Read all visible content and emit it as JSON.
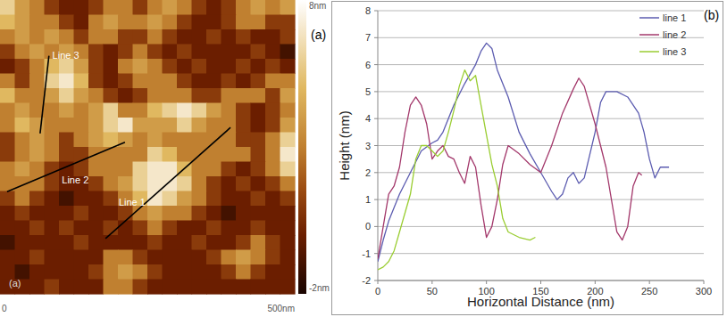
{
  "chart_data": [
    {
      "type": "heatmap",
      "panel_labels": [
        "(a)",
        "(a)"
      ],
      "xlim": [
        0,
        500
      ],
      "ylim": [
        0,
        500
      ],
      "xticks": [
        0,
        {
          "value": 500,
          "label": "500nm"
        }
      ],
      "tick_labels": "x",
      "colorbar_range": [
        -2,
        8
      ],
      "colorbar_ticks": [
        {
          "value": 8,
          "label": "8nm"
        },
        {
          "value": -2,
          "label": "-2nm"
        }
      ],
      "cells": [
        [
          6,
          4,
          3,
          1,
          0,
          0,
          1,
          3,
          3,
          1,
          3,
          4,
          3,
          1,
          0,
          1,
          3,
          4,
          3,
          4
        ],
        [
          5,
          4,
          3,
          3,
          1,
          0,
          3,
          4,
          3,
          3,
          4,
          3,
          1,
          0,
          0,
          1,
          3,
          3,
          1,
          1
        ],
        [
          3,
          4,
          3,
          4,
          3,
          1,
          3,
          3,
          1,
          1,
          3,
          1,
          0,
          0,
          1,
          0,
          1,
          0,
          0,
          1
        ],
        [
          1,
          3,
          4,
          3,
          4,
          3,
          1,
          0,
          1,
          3,
          1,
          0,
          1,
          0,
          0,
          0,
          0,
          1,
          0,
          -1
        ],
        [
          0,
          1,
          3,
          5,
          6,
          4,
          1,
          0,
          3,
          4,
          3,
          1,
          0,
          1,
          0,
          0,
          1,
          0,
          1,
          0
        ],
        [
          3,
          1,
          3,
          6,
          7,
          5,
          1,
          0,
          1,
          3,
          3,
          3,
          1,
          0,
          0,
          1,
          0,
          1,
          3,
          3
        ],
        [
          5,
          3,
          3,
          4,
          6,
          4,
          3,
          1,
          0,
          1,
          3,
          3,
          3,
          1,
          1,
          3,
          3,
          3,
          1,
          4
        ],
        [
          3,
          4,
          3,
          3,
          4,
          3,
          4,
          6,
          3,
          3,
          5,
          6,
          7,
          6,
          4,
          3,
          1,
          0,
          1,
          3
        ],
        [
          3,
          5,
          4,
          3,
          3,
          3,
          4,
          6,
          7,
          4,
          4,
          4,
          6,
          4,
          3,
          3,
          1,
          0,
          1,
          4
        ],
        [
          1,
          3,
          4,
          3,
          1,
          3,
          4,
          5,
          4,
          3,
          4,
          3,
          3,
          3,
          3,
          3,
          1,
          1,
          3,
          6
        ],
        [
          1,
          3,
          4,
          3,
          1,
          1,
          3,
          3,
          3,
          3,
          6,
          5,
          3,
          3,
          3,
          3,
          3,
          1,
          3,
          7
        ],
        [
          3,
          4,
          3,
          1,
          0,
          1,
          3,
          3,
          3,
          6,
          7,
          7,
          5,
          3,
          3,
          1,
          0,
          1,
          3,
          6
        ],
        [
          3,
          3,
          3,
          1,
          0,
          0,
          1,
          3,
          4,
          6,
          7,
          7,
          6,
          3,
          1,
          0,
          1,
          0,
          1,
          3
        ],
        [
          1,
          3,
          1,
          0,
          -1,
          0,
          0,
          1,
          3,
          5,
          7,
          6,
          4,
          3,
          1,
          0,
          0,
          1,
          0,
          1
        ],
        [
          0,
          1,
          0,
          0,
          0,
          1,
          0,
          0,
          1,
          3,
          4,
          3,
          3,
          1,
          0,
          -1,
          0,
          0,
          0,
          0
        ],
        [
          0,
          0,
          1,
          0,
          1,
          0,
          0,
          1,
          0,
          1,
          3,
          1,
          0,
          0,
          1,
          0,
          0,
          1,
          0,
          0
        ],
        [
          -1,
          0,
          0,
          0,
          0,
          1,
          0,
          0,
          0,
          0,
          1,
          0,
          0,
          1,
          0,
          0,
          1,
          3,
          1,
          0
        ],
        [
          0,
          0,
          1,
          0,
          0,
          0,
          0,
          3,
          3,
          1,
          0,
          0,
          0,
          0,
          1,
          3,
          4,
          3,
          1,
          0
        ],
        [
          0,
          -1,
          0,
          0,
          0,
          0,
          1,
          3,
          4,
          3,
          1,
          0,
          0,
          0,
          0,
          1,
          3,
          1,
          0,
          0
        ],
        [
          0,
          0,
          0,
          1,
          0,
          0,
          0,
          3,
          3,
          1,
          0,
          0,
          0,
          0,
          0,
          0,
          0,
          0,
          0,
          0
        ]
      ],
      "annotations": [
        {
          "text": "Line 1",
          "x": [
            179,
            391
          ],
          "y": [
            406,
            217
          ]
        },
        {
          "text": "Line 2",
          "x": [
            12,
            212
          ],
          "y": [
            326,
            242
          ]
        },
        {
          "text": "Line 3",
          "x": [
            83,
            68
          ],
          "y": [
            95,
            227
          ]
        }
      ]
    },
    {
      "type": "line",
      "panel_label": "(b)",
      "x_label": "Horizontal Distance (nm)",
      "y_label": "Height (nm)",
      "xlim": [
        0,
        300
      ],
      "ylim": [
        -2,
        8
      ],
      "xticks": [
        0,
        50,
        100,
        150,
        200,
        250,
        300
      ],
      "yticks": [
        -2,
        -1,
        0,
        1,
        2,
        3,
        4,
        5,
        6,
        7,
        8
      ],
      "grid": true,
      "legend": "top-right",
      "series": [
        {
          "name": "line 1",
          "color": "#5c5cb0",
          "x": [
            0,
            5,
            10,
            20,
            30,
            40,
            50,
            55,
            60,
            70,
            80,
            90,
            95,
            100,
            105,
            110,
            120,
            130,
            140,
            150,
            160,
            165,
            170,
            175,
            180,
            185,
            190,
            200,
            205,
            210,
            220,
            230,
            240,
            245,
            250,
            255,
            260,
            268
          ],
          "values": [
            -1.3,
            -0.5,
            0.2,
            1.2,
            2,
            2.8,
            3.1,
            3.2,
            3.5,
            4.5,
            5.3,
            6,
            6.5,
            6.8,
            6.6,
            5.8,
            4.8,
            3.5,
            2.7,
            2,
            1.3,
            1,
            1.2,
            1.8,
            2,
            1.6,
            1.8,
            3.5,
            4.6,
            5,
            5,
            4.8,
            4.2,
            3.5,
            2.5,
            1.8,
            2.2,
            2.2
          ]
        },
        {
          "name": "line 2",
          "color": "#a3386b",
          "x": [
            0,
            5,
            10,
            15,
            20,
            25,
            30,
            35,
            40,
            45,
            50,
            55,
            60,
            65,
            70,
            75,
            80,
            85,
            90,
            95,
            100,
            105,
            110,
            115,
            120,
            130,
            140,
            150,
            160,
            170,
            180,
            185,
            190,
            200,
            210,
            220,
            225,
            230,
            235,
            240,
            243
          ],
          "values": [
            -1.2,
            0,
            1.2,
            1.5,
            2.2,
            3.5,
            4.5,
            4.8,
            4.5,
            3.8,
            2.5,
            2.8,
            3,
            2.6,
            2.5,
            2,
            1.6,
            2.6,
            2.2,
            0.8,
            -0.4,
            0,
            1,
            2.3,
            3,
            2.7,
            2.3,
            2,
            3,
            4.2,
            5.1,
            5.5,
            5.2,
            3.8,
            2.2,
            -0.2,
            -0.5,
            0,
            1.5,
            2,
            1.9
          ]
        },
        {
          "name": "line 3",
          "color": "#9acd32",
          "x": [
            0,
            5,
            10,
            15,
            20,
            25,
            30,
            35,
            40,
            45,
            50,
            55,
            60,
            65,
            70,
            75,
            80,
            85,
            90,
            95,
            100,
            105,
            110,
            115,
            120,
            125,
            130,
            140,
            145
          ],
          "values": [
            -1.6,
            -1.5,
            -1.3,
            -0.9,
            -0.2,
            0.5,
            1.2,
            2.5,
            3,
            3,
            2.8,
            2.6,
            2.8,
            3.5,
            4.3,
            5.2,
            5.8,
            5.4,
            5.6,
            4.5,
            3.4,
            2.3,
            1.5,
            0.3,
            -0.2,
            -0.3,
            -0.4,
            -0.5,
            -0.4
          ]
        }
      ]
    }
  ]
}
